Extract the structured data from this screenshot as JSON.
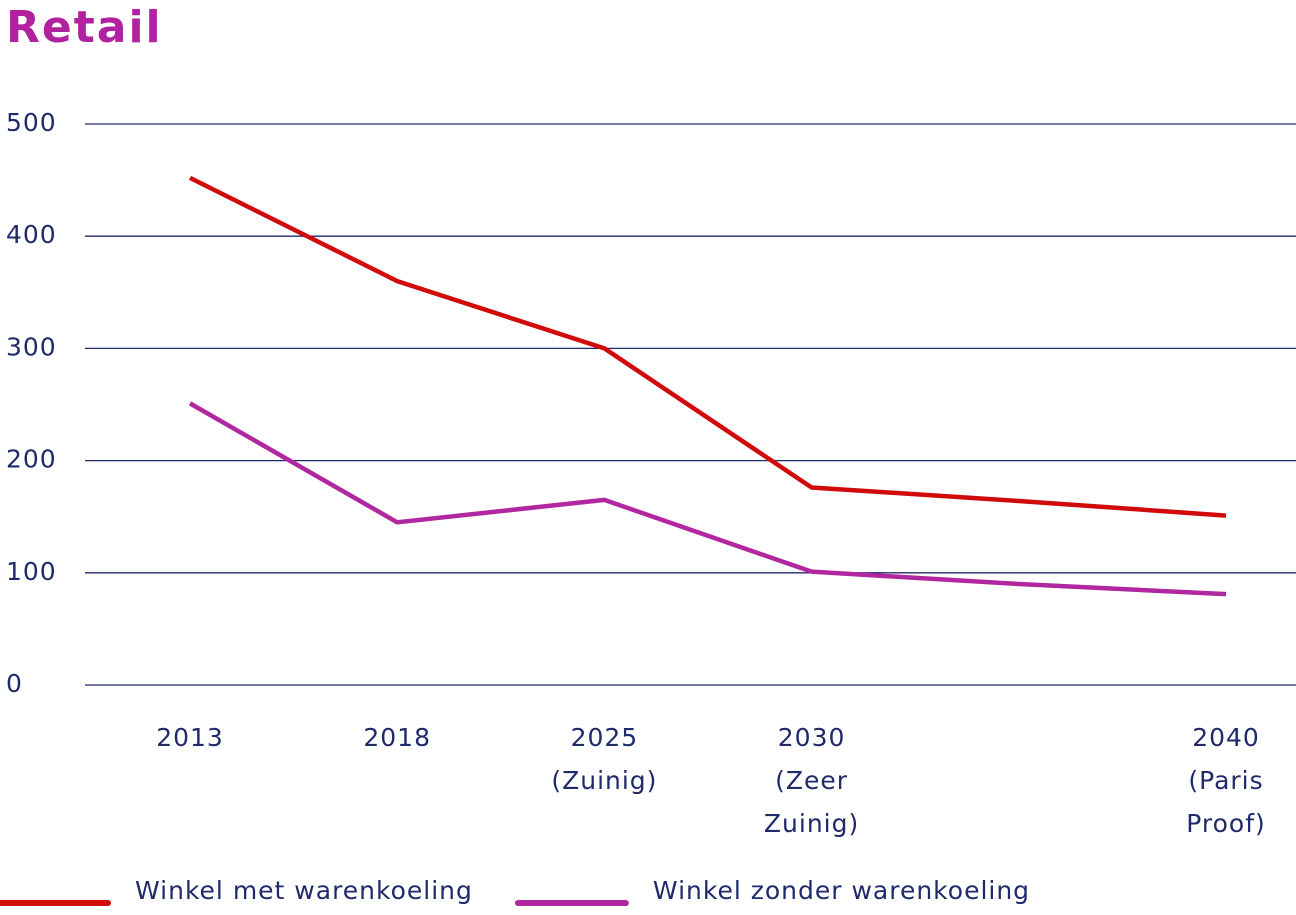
{
  "chart_data": {
    "type": "line",
    "title": "Retail",
    "categories": [
      "2013",
      "2018",
      "2025 (Zuinig)",
      "2030 (Zeer Zuinig)",
      null,
      "2040 (Paris Proof)"
    ],
    "series": [
      {
        "name": "Winkel met warenkoeling",
        "color": "#d10a0a",
        "values": [
          452,
          360,
          300,
          176,
          164,
          151
        ]
      },
      {
        "name": "Winkel zonder warenkoeling",
        "color": "#b0279f",
        "values": [
          251,
          145,
          165,
          101,
          90,
          81
        ]
      }
    ],
    "ylim": [
      0,
      500
    ],
    "yticks": [
      0,
      100,
      200,
      300,
      400,
      500
    ],
    "grid": true,
    "legend": "bottom"
  }
}
